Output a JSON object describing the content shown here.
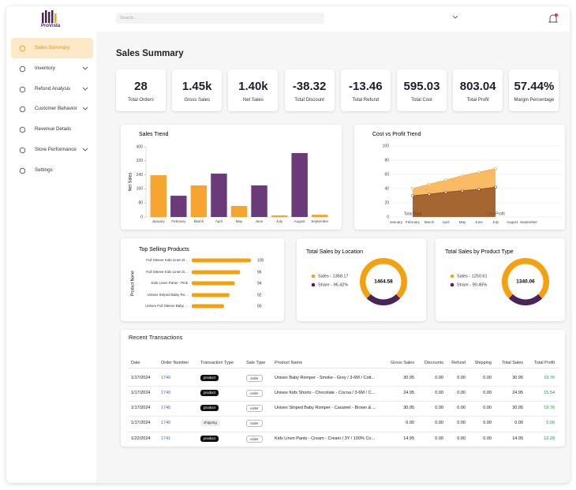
{
  "brand": "ProVista",
  "search_placeholder": "Search...",
  "menu": [
    "Sales Summary",
    "Inventory",
    "Refund Analysis",
    "Customer Behavior",
    "Revenue Details",
    "Store Performance",
    "Settings"
  ],
  "page_title": "Sales Summary",
  "kpis": [
    {
      "value": 28,
      "label": "Total Orders"
    },
    {
      "value": "1.45k",
      "label": "Gross Sales"
    },
    {
      "value": "1.40k",
      "label": "Net Sales"
    },
    {
      "value": -38.32,
      "label": "Total Discount"
    },
    {
      "value": -13.46,
      "label": "Total Refund"
    },
    {
      "value": 595.03,
      "label": "Total Cost"
    },
    {
      "value": 803.04,
      "label": "Total Profit"
    },
    {
      "value": "57.44%",
      "label": "Margin Percentage"
    }
  ],
  "chart_data": [
    {
      "type": "bar",
      "title": "Sales Trend",
      "y_label": "Net Sales",
      "categories": [
        "January",
        "February",
        "March",
        "April",
        "May",
        "June",
        "July",
        "August",
        "September"
      ],
      "values": [
        238,
        121,
        180,
        247,
        63,
        180,
        9,
        364,
        13
      ],
      "colors": [
        "#f7a531",
        "#6b3a78",
        "#f7a531",
        "#6b3a78",
        "#f7a531",
        "#6b3a78",
        "#f7a531",
        "#6b3a78",
        "#f7a531"
      ],
      "ylim": [
        0,
        400
      ],
      "yticks": [
        0,
        80,
        160,
        240,
        320,
        400
      ]
    },
    {
      "type": "area",
      "title": "Cost vs Profit Trend",
      "categories": [
        "January",
        "February",
        "March",
        "April",
        "May",
        "June",
        "July",
        "August",
        "September"
      ],
      "series": [
        {
          "name": "Total Profit",
          "color": "#f7a531",
          "values": [
            null,
            40,
            46,
            52,
            58,
            63,
            68,
            null,
            null
          ]
        },
        {
          "name": "Total Cost",
          "color": "#8a4a22",
          "values": [
            null,
            30,
            32,
            35,
            37,
            39,
            42,
            null,
            null
          ]
        }
      ],
      "ylim": [
        0,
        100
      ],
      "yticks": [
        0,
        20,
        40,
        60,
        80,
        100
      ],
      "grid": true
    },
    {
      "type": "hbar",
      "title": "Top Selling Products",
      "y_label": "Product Name",
      "categories": [
        "Full Sleeve Kids Linen D...",
        "Full Sleeve Kids Linen D...",
        "Kids Linen Pants - Pink",
        "Unisex Striped Baby Ro...",
        "Unisex Full Sleeve Baby ..."
      ],
      "values": [
        100,
        96,
        94,
        92,
        90
      ],
      "color": "#f5a00f",
      "xlim": [
        78,
        100
      ]
    },
    {
      "type": "donut",
      "title": "Total Sales by Location",
      "center_label": "1464.58",
      "categories": [
        "Sales - 1368.17",
        "Share - 96.42%"
      ],
      "values": [
        75,
        25
      ],
      "colors": [
        "#f5a00f",
        "#4a2358"
      ]
    },
    {
      "type": "donut",
      "title": "Total Sales by Product Type",
      "center_label": "1340.06",
      "categories": [
        "Sales - 1250.61",
        "Share - 90.45%"
      ],
      "values": [
        75,
        25
      ],
      "colors": [
        "#f5a00f",
        "#4a2358"
      ]
    }
  ],
  "table": {
    "title": "Recent Transactions",
    "columns": [
      "Date",
      "Order Number",
      "Transaction Type",
      "Sale Type",
      "Product Name",
      "Gross Sales",
      "Discounts",
      "Refund",
      "Shipping",
      "Total Sales",
      "Total Profit"
    ],
    "rows": [
      [
        "1/17/2024",
        "1740",
        "product",
        "order",
        "Unisex Baby Romper - Smoke - Grey / 3-6M / Cott...",
        "30.95",
        "0.00",
        "0.00",
        "0.00",
        "30.95",
        "19.76"
      ],
      [
        "1/17/2024",
        "1740",
        "product",
        "order",
        "Unisex Kids Shorts - Chocolate - Cocoa / 3-6M / C...",
        "24.95",
        "0.00",
        "0.00",
        "0.00",
        "24.95",
        "15.54"
      ],
      [
        "1/17/2024",
        "1740",
        "product",
        "order",
        "Unisex Striped Baby Romper - Caramel - Brown & ...",
        "30.95",
        "0.00",
        "0.00",
        "0.00",
        "30.95",
        "19.76"
      ],
      [
        "1/17/2024",
        "1740",
        "shipping",
        "order",
        null,
        "0.00",
        "0.00",
        "0.00",
        "0.00",
        "0.00",
        "0.00"
      ],
      [
        "1/22/2024",
        "1741",
        "product",
        "order",
        "Kids Linen Pants - Cream - Cream / 3Y / 100% Co...",
        "14.95",
        "0.00",
        "0.00",
        "0.00",
        "14.95",
        "12.29"
      ]
    ]
  }
}
